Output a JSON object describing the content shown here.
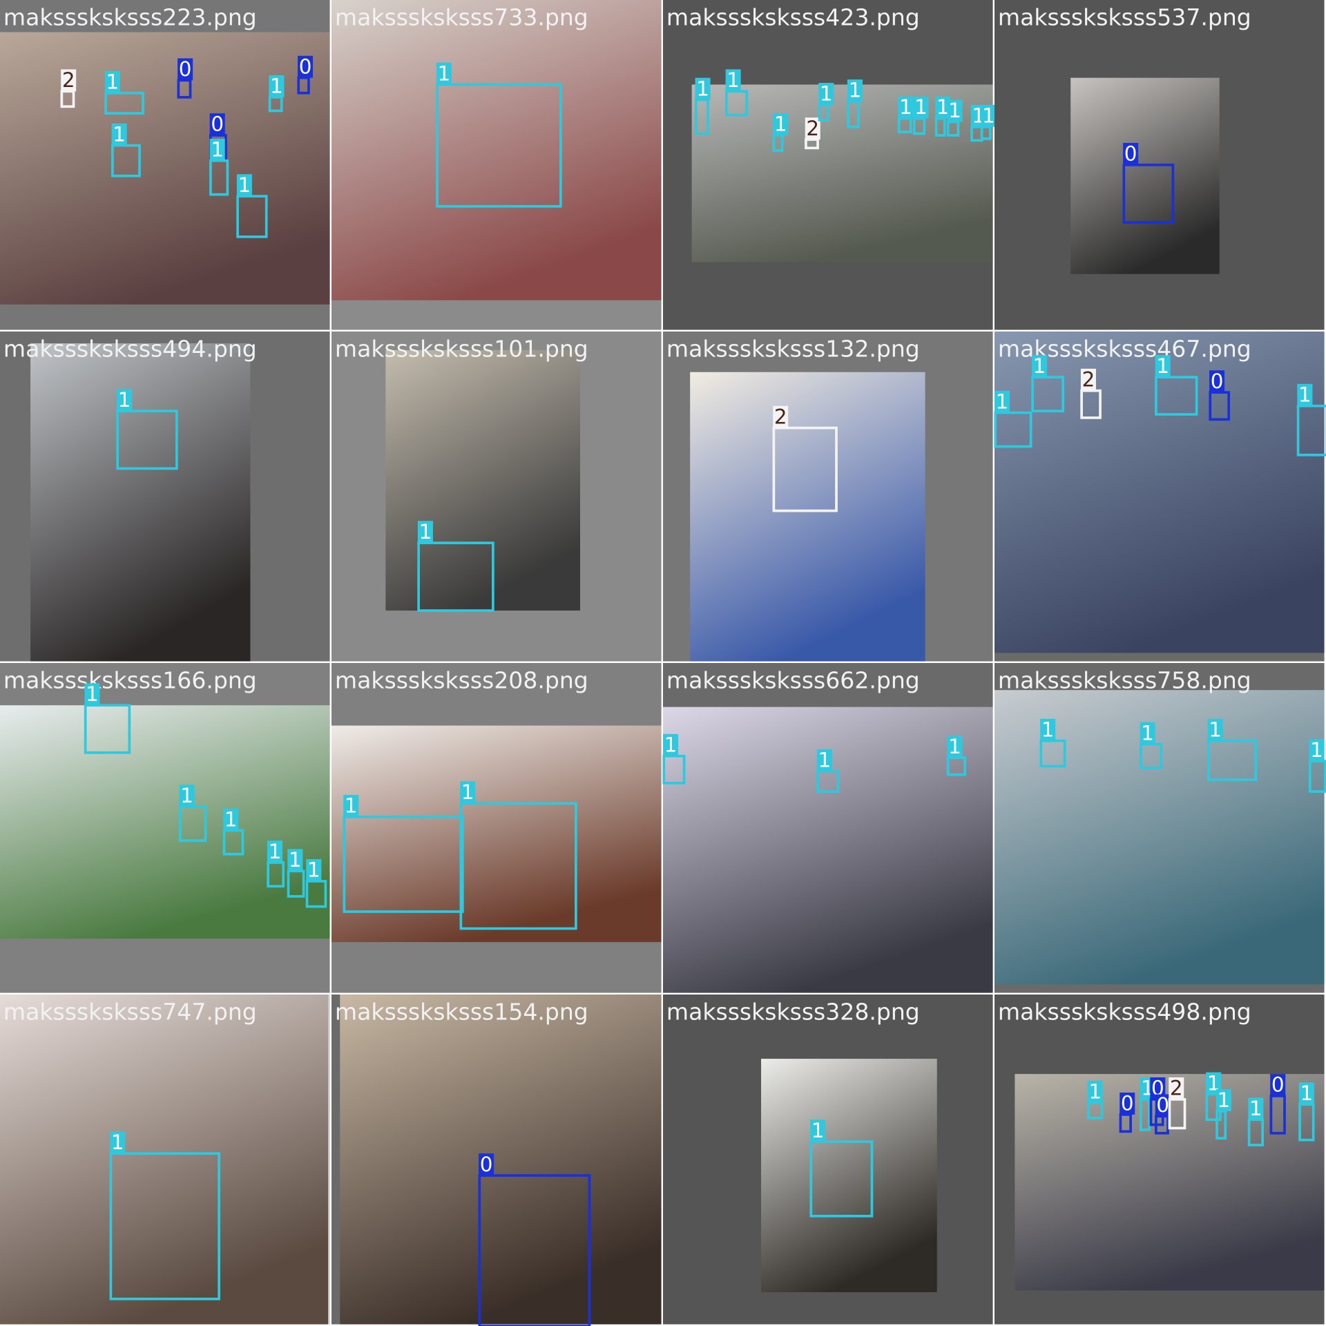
{
  "tiles": [
    {
      "filename": "maksssksksss223.png",
      "boxes": [
        {
          "label": "2"
        },
        {
          "label": "1"
        },
        {
          "label": "0"
        },
        {
          "label": "1"
        },
        {
          "label": "0"
        },
        {
          "label": "0"
        },
        {
          "label": "1"
        },
        {
          "label": "1"
        },
        {
          "label": "1"
        }
      ]
    },
    {
      "filename": "maksssksksss733.png",
      "boxes": [
        {
          "label": "1"
        }
      ]
    },
    {
      "filename": "maksssksksss423.png",
      "boxes": [
        {
          "label": "1"
        },
        {
          "label": "1"
        },
        {
          "label": "2"
        },
        {
          "label": "1"
        },
        {
          "label": "1"
        },
        {
          "label": "1"
        },
        {
          "label": "1"
        },
        {
          "label": "1"
        },
        {
          "label": "1"
        },
        {
          "label": "1"
        },
        {
          "label": "1"
        },
        {
          "label": "1"
        }
      ]
    },
    {
      "filename": "maksssksksss537.png",
      "boxes": [
        {
          "label": "0"
        }
      ]
    },
    {
      "filename": "maksssksksss494.png",
      "boxes": [
        {
          "label": "1"
        }
      ]
    },
    {
      "filename": "maksssksksss101.png",
      "boxes": [
        {
          "label": "1"
        }
      ]
    },
    {
      "filename": "maksssksksss132.png",
      "boxes": [
        {
          "label": "2"
        }
      ]
    },
    {
      "filename": "maksssksksss467.png",
      "boxes": [
        {
          "label": "1"
        },
        {
          "label": "1"
        },
        {
          "label": "2"
        },
        {
          "label": "1"
        },
        {
          "label": "0"
        },
        {
          "label": "1"
        }
      ]
    },
    {
      "filename": "maksssksksss166.png",
      "boxes": [
        {
          "label": "1"
        },
        {
          "label": "1"
        },
        {
          "label": "1"
        },
        {
          "label": "1"
        },
        {
          "label": "1"
        },
        {
          "label": "1"
        }
      ]
    },
    {
      "filename": "maksssksksss208.png",
      "boxes": [
        {
          "label": "1"
        },
        {
          "label": "1"
        }
      ]
    },
    {
      "filename": "maksssksksss662.png",
      "boxes": [
        {
          "label": "1"
        },
        {
          "label": "1"
        },
        {
          "label": "1"
        }
      ]
    },
    {
      "filename": "maksssksksss758.png",
      "boxes": [
        {
          "label": "1"
        },
        {
          "label": "1"
        },
        {
          "label": "1"
        },
        {
          "label": "1"
        }
      ]
    },
    {
      "filename": "maksssksksss747.png",
      "boxes": [
        {
          "label": "1"
        }
      ]
    },
    {
      "filename": "maksssksksss154.png",
      "boxes": [
        {
          "label": "0"
        }
      ]
    },
    {
      "filename": "maksssksksss328.png",
      "boxes": [
        {
          "label": "1"
        }
      ]
    },
    {
      "filename": "maksssksksss498.png",
      "boxes": [
        {
          "label": "1"
        },
        {
          "label": "0"
        },
        {
          "label": "1"
        },
        {
          "label": "0"
        },
        {
          "label": "0"
        },
        {
          "label": "2"
        },
        {
          "label": "1"
        },
        {
          "label": "1"
        },
        {
          "label": "1"
        },
        {
          "label": "0"
        },
        {
          "label": "1"
        }
      ]
    }
  ]
}
